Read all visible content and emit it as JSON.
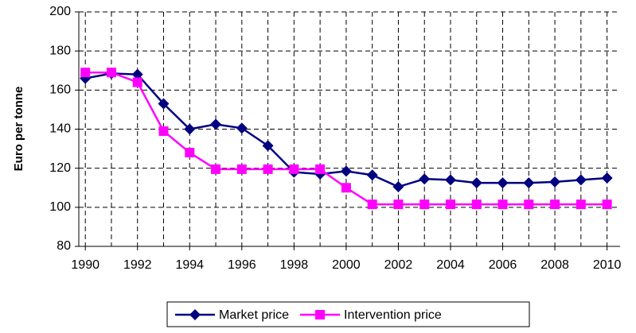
{
  "chart_data": {
    "type": "line",
    "y_label": "Euro per tonne",
    "x": [
      1990,
      1991,
      1992,
      1993,
      1994,
      1995,
      1996,
      1997,
      1998,
      1999,
      2000,
      2001,
      2002,
      2003,
      2004,
      2005,
      2006,
      2007,
      2008,
      2009,
      2010
    ],
    "series": [
      {
        "name": "Market price",
        "color": "#000080",
        "marker": "diamond",
        "values": [
          166,
          168.5,
          168,
          153,
          140,
          142.5,
          140.5,
          131.5,
          118,
          117,
          118.5,
          116.5,
          110.5,
          114.5,
          114,
          112.5,
          112.5,
          112.5,
          113,
          114,
          115
        ]
      },
      {
        "name": "Intervention price",
        "color": "#ff00ff",
        "marker": "square",
        "values": [
          169,
          169,
          164,
          139,
          128,
          119.5,
          119.5,
          119.5,
          119.5,
          119.5,
          110,
          101.5,
          101.5,
          101.5,
          101.5,
          101.5,
          101.5,
          101.5,
          101.5,
          101.5,
          101.5
        ]
      }
    ],
    "xlim": [
      1989.75,
      2010.5
    ],
    "xticks": [
      1990,
      1992,
      1994,
      1996,
      1998,
      2000,
      2002,
      2004,
      2006,
      2008,
      2010
    ],
    "ylim": [
      80,
      200
    ],
    "yticks": [
      80,
      100,
      120,
      140,
      160,
      180,
      200
    ],
    "grid": true,
    "legend": "bottom"
  }
}
